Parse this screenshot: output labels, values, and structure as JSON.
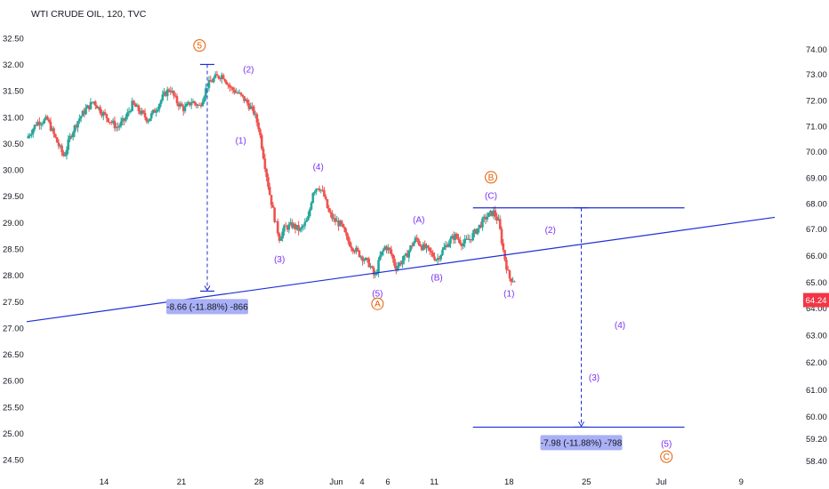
{
  "chart_data": {
    "type": "candlestick",
    "title": "WTI CRUDE OIL, 120, TVC",
    "left_axis": {
      "range": [
        24.25,
        32.75
      ],
      "ticks": [
        "32.50",
        "32.00",
        "31.50",
        "31.00",
        "30.50",
        "30.00",
        "29.50",
        "29.00",
        "28.50",
        "28.00",
        "27.50",
        "27.00",
        "26.50",
        "26.00",
        "25.50",
        "25.00",
        "24.50"
      ]
    },
    "right_axis": {
      "ticks": [
        {
          "label": "74.00",
          "y": 32.29
        },
        {
          "label": "73.00",
          "y": 31.81
        },
        {
          "label": "72.00",
          "y": 31.32
        },
        {
          "label": "71.00",
          "y": 30.83
        },
        {
          "label": "70.00",
          "y": 30.35
        },
        {
          "label": "69.00",
          "y": 29.85
        },
        {
          "label": "68.00",
          "y": 29.36
        },
        {
          "label": "67.00",
          "y": 28.88
        },
        {
          "label": "66.00",
          "y": 28.37
        },
        {
          "label": "65.00",
          "y": 27.87
        },
        {
          "label": "64.00",
          "y": 27.38
        },
        {
          "label": "63.00",
          "y": 26.86
        },
        {
          "label": "62.00",
          "y": 26.35
        },
        {
          "label": "61.00",
          "y": 25.83
        },
        {
          "label": "60.00",
          "y": 25.32
        },
        {
          "label": "59.20",
          "y": 24.9
        },
        {
          "label": "58.40",
          "y": 24.48
        }
      ],
      "last_price": {
        "label": "64.24",
        "y": 27.53,
        "color": "#f23645"
      }
    },
    "x_axis": {
      "range": [
        0,
        30
      ],
      "ticks": [
        {
          "label": "14",
          "x": 3.0
        },
        {
          "label": "21",
          "x": 6.0
        },
        {
          "label": "28",
          "x": 9.0
        },
        {
          "label": "Jun",
          "x": 12.0
        },
        {
          "label": "4",
          "x": 13.0
        },
        {
          "label": "6",
          "x": 14.0
        },
        {
          "label": "11",
          "x": 15.8
        },
        {
          "label": "18",
          "x": 18.7
        },
        {
          "label": "25",
          "x": 21.7
        },
        {
          "label": "Jul",
          "x": 24.6
        },
        {
          "label": "9",
          "x": 27.7
        }
      ]
    },
    "price_path": [
      [
        0.0,
        30.6
      ],
      [
        0.4,
        30.9
      ],
      [
        0.8,
        30.95
      ],
      [
        1.2,
        30.5
      ],
      [
        1.45,
        30.25
      ],
      [
        1.7,
        30.65
      ],
      [
        2.0,
        30.95
      ],
      [
        2.3,
        31.15
      ],
      [
        2.6,
        31.3
      ],
      [
        2.9,
        31.1
      ],
      [
        3.2,
        30.95
      ],
      [
        3.5,
        30.8
      ],
      [
        3.8,
        30.95
      ],
      [
        4.1,
        31.25
      ],
      [
        4.4,
        31.1
      ],
      [
        4.7,
        30.95
      ],
      [
        5.0,
        31.15
      ],
      [
        5.3,
        31.4
      ],
      [
        5.55,
        31.55
      ],
      [
        5.8,
        31.3
      ],
      [
        6.1,
        31.15
      ],
      [
        6.4,
        31.3
      ],
      [
        6.7,
        31.2
      ],
      [
        7.0,
        31.6
      ],
      [
        7.3,
        31.75
      ],
      [
        7.6,
        31.8
      ],
      [
        7.9,
        31.55
      ],
      [
        8.2,
        31.45
      ],
      [
        8.5,
        31.3
      ],
      [
        8.8,
        31.1
      ],
      [
        9.0,
        30.8
      ],
      [
        9.2,
        30.2
      ],
      [
        9.4,
        29.6
      ],
      [
        9.6,
        29.1
      ],
      [
        9.8,
        28.7
      ],
      [
        10.0,
        28.9
      ],
      [
        10.3,
        28.95
      ],
      [
        10.6,
        28.85
      ],
      [
        10.9,
        29.05
      ],
      [
        11.1,
        29.6
      ],
      [
        11.3,
        29.7
      ],
      [
        11.5,
        29.55
      ],
      [
        11.7,
        29.2
      ],
      [
        11.9,
        29.05
      ],
      [
        12.2,
        28.95
      ],
      [
        12.4,
        28.7
      ],
      [
        12.6,
        28.55
      ],
      [
        12.9,
        28.4
      ],
      [
        13.1,
        28.3
      ],
      [
        13.3,
        28.2
      ],
      [
        13.5,
        27.95
      ],
      [
        13.7,
        28.35
      ],
      [
        13.9,
        28.55
      ],
      [
        14.1,
        28.45
      ],
      [
        14.3,
        28.15
      ],
      [
        14.5,
        28.25
      ],
      [
        14.7,
        28.35
      ],
      [
        14.9,
        28.55
      ],
      [
        15.1,
        28.7
      ],
      [
        15.3,
        28.55
      ],
      [
        15.5,
        28.5
      ],
      [
        15.7,
        28.4
      ],
      [
        15.9,
        28.3
      ],
      [
        16.1,
        28.45
      ],
      [
        16.3,
        28.6
      ],
      [
        16.6,
        28.75
      ],
      [
        16.9,
        28.6
      ],
      [
        17.2,
        28.7
      ],
      [
        17.5,
        28.9
      ],
      [
        17.8,
        29.1
      ],
      [
        18.1,
        29.2
      ],
      [
        18.3,
        29.0
      ],
      [
        18.5,
        28.4
      ],
      [
        18.7,
        27.95
      ],
      [
        18.95,
        27.9
      ]
    ],
    "trendlines": [
      {
        "from": [
          0.0,
          27.12
        ],
        "to": [
          29.0,
          29.1
        ]
      },
      {
        "from": [
          17.3,
          29.28
        ],
        "to": [
          25.5,
          29.28
        ]
      },
      {
        "from": [
          17.3,
          25.12
        ],
        "to": [
          25.5,
          25.12
        ]
      }
    ],
    "measures": [
      {
        "x": 7.0,
        "from": 32.0,
        "to": 27.7,
        "label": "-8.66 (-11.88%) -866"
      },
      {
        "x": 21.5,
        "from": 29.28,
        "to": 25.12,
        "label": "-7.98 (-11.88%) -798"
      }
    ],
    "wave_labels_purple": [
      {
        "label": "(2)",
        "x": 8.6,
        "y": 31.85
      },
      {
        "label": "(1)",
        "x": 8.3,
        "y": 30.5
      },
      {
        "label": "(4)",
        "x": 11.3,
        "y": 30.0
      },
      {
        "label": "(3)",
        "x": 9.8,
        "y": 28.25
      },
      {
        "label": "(5)",
        "x": 13.6,
        "y": 27.6
      },
      {
        "label": "(A)",
        "x": 15.2,
        "y": 29.0
      },
      {
        "label": "(B)",
        "x": 15.9,
        "y": 27.9
      },
      {
        "label": "(C)",
        "x": 18.0,
        "y": 29.45
      },
      {
        "label": "(1)",
        "x": 18.7,
        "y": 27.6
      },
      {
        "label": "(2)",
        "x": 20.3,
        "y": 28.8
      },
      {
        "label": "(3)",
        "x": 22.0,
        "y": 26.0
      },
      {
        "label": "(4)",
        "x": 23.0,
        "y": 27.0
      },
      {
        "label": "(5)",
        "x": 24.8,
        "y": 24.75
      }
    ],
    "wave_labels_orange": [
      {
        "label": "5",
        "x": 6.7,
        "y": 32.3
      },
      {
        "label": "A",
        "x": 13.6,
        "y": 27.4
      },
      {
        "label": "B",
        "x": 18.0,
        "y": 29.8
      },
      {
        "label": "C",
        "x": 24.8,
        "y": 24.5
      }
    ],
    "colors": {
      "up": "#26a69a",
      "down": "#ef5350",
      "line": "#1f2fd6",
      "wave": "#7b2ff7",
      "circled": "#e65c00",
      "measure_box": "#a9b0f5",
      "grid_text": "#131722"
    }
  }
}
